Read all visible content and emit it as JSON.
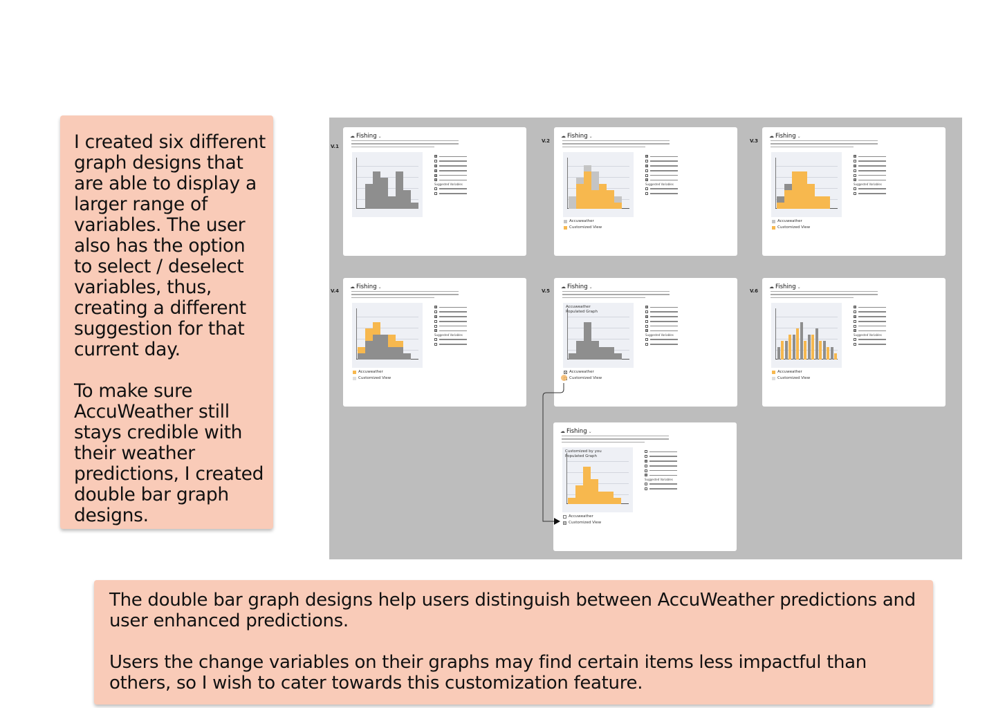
{
  "notes": {
    "left_p1": "I created six different graph designs that are able to display a larger range of variables. The user also has the option to select / deselect variables, thus, creating a different suggestion for that current day.",
    "left_p2": "To make sure AccuWeather still stays credible with their weather predictions, I created double bar graph designs.",
    "bottom_p1": "The double bar graph designs help users distinguish between AccuWeather predictions and user enhanced predictions.",
    "bottom_p2": "Users the change variables on their graphs may find certain items less impactful than others, so I wish to cater towards this customization feature."
  },
  "card_title": "Fishing",
  "legend_labels": {
    "accuweather": "Accuweather",
    "custom": "Customized View"
  },
  "colors": {
    "note_bg": "#f9cbb8",
    "board_bg": "#bdbdbd",
    "gray_bar": "#8e8e8e",
    "light_gray_bar": "#c4c4c4",
    "orange_bar": "#f7b84e",
    "highlight": "#f5b96a"
  },
  "versions": [
    {
      "label": "V.1",
      "checks": [
        1,
        0,
        1,
        1,
        1,
        1
      ],
      "legend": "none",
      "series": [
        {
          "color": "gray",
          "values": [
            0,
            4,
            6,
            5,
            2,
            6,
            3,
            1
          ]
        }
      ]
    },
    {
      "label": "V.2",
      "checks": [
        1,
        0,
        1,
        0,
        0,
        1
      ],
      "legend": "accu-light",
      "series": [
        {
          "color": "lightgray",
          "values": [
            2,
            5,
            7,
            6,
            4,
            3,
            2,
            0
          ]
        },
        {
          "color": "orange",
          "values": [
            0,
            4,
            6,
            3,
            4,
            3,
            1,
            0
          ]
        }
      ]
    },
    {
      "label": "V.3",
      "checks": [
        1,
        0,
        1,
        0,
        0,
        1
      ],
      "legend": "accu-light",
      "series": [
        {
          "color": "gray",
          "values": [
            2,
            4,
            4,
            5,
            3,
            2,
            1,
            0
          ]
        },
        {
          "color": "orange",
          "values": [
            1,
            3,
            6,
            6,
            4,
            2,
            2,
            0
          ]
        }
      ]
    },
    {
      "label": "V.4",
      "checks": [
        1,
        0,
        1,
        0,
        0,
        1
      ],
      "legend": "accu-orange",
      "series": [
        {
          "color": "orange",
          "values": [
            2,
            5,
            6,
            4,
            4,
            3,
            1,
            0
          ]
        },
        {
          "color": "gray",
          "values": [
            1,
            3,
            4,
            4,
            2,
            2,
            1,
            0
          ]
        }
      ]
    },
    {
      "label": "V.5",
      "checks": [
        1,
        0,
        1,
        0,
        0,
        1
      ],
      "legend": "accu-checked",
      "graph_label": [
        "Accuweather",
        "Populated Graph"
      ],
      "series": [
        {
          "color": "gray",
          "values": [
            1,
            3,
            6,
            3,
            2,
            2,
            1,
            0
          ]
        }
      ]
    },
    {
      "label": "V.6",
      "checks": [
        1,
        0,
        1,
        0,
        0,
        1
      ],
      "legend": "accu-orange",
      "grouped": true,
      "series": [
        {
          "color": "gray",
          "values": [
            2,
            3,
            4,
            6,
            4,
            5,
            3,
            2
          ]
        },
        {
          "color": "orange",
          "values": [
            3,
            4,
            5,
            3,
            4,
            3,
            2,
            1
          ]
        }
      ]
    },
    {
      "label": "",
      "checks": [
        0,
        0,
        1,
        0,
        0,
        1
      ],
      "legend": "custom-checked",
      "graph_label": [
        "Customized by you",
        "Populated Graph"
      ],
      "series": [
        {
          "color": "orange",
          "values": [
            1,
            3,
            6,
            4,
            2,
            2,
            1,
            0
          ]
        }
      ]
    }
  ],
  "suggested_vars": "Suggested Variables"
}
